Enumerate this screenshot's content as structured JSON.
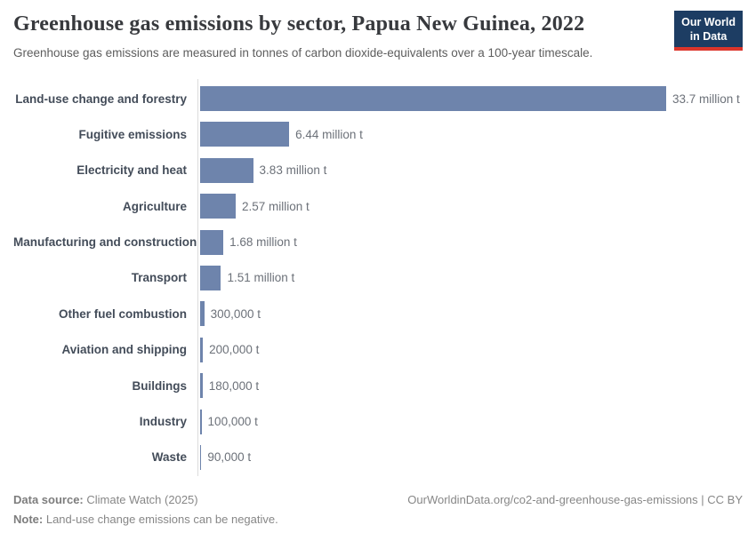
{
  "header": {
    "title": "Greenhouse gas emissions by sector, Papua New Guinea, 2022",
    "subtitle": "Greenhouse gas emissions are measured in tonnes of carbon dioxide-equivalents over a 100-year timescale.",
    "logo": {
      "line1": "Our World",
      "line2": "in Data"
    }
  },
  "chart_data": {
    "type": "bar",
    "orientation": "horizontal",
    "title": "Greenhouse gas emissions by sector, Papua New Guinea, 2022",
    "unit": "tonnes of carbon dioxide-equivalents",
    "categories": [
      "Land-use change and forestry",
      "Fugitive emissions",
      "Electricity and heat",
      "Agriculture",
      "Manufacturing and construction",
      "Transport",
      "Other fuel combustion",
      "Aviation and shipping",
      "Buildings",
      "Industry",
      "Waste"
    ],
    "values_million_t": [
      33.7,
      6.44,
      3.83,
      2.57,
      1.68,
      1.51,
      0.3,
      0.2,
      0.18,
      0.1,
      0.09
    ],
    "value_labels": [
      "33.7 million t",
      "6.44 million t",
      "3.83 million t",
      "2.57 million t",
      "1.68 million t",
      "1.51 million t",
      "300,000 t",
      "200,000 t",
      "180,000 t",
      "100,000 t",
      "90,000 t"
    ],
    "xlim": [
      0,
      33.7
    ],
    "grid": false,
    "legend": "none"
  },
  "footer": {
    "data_source_label": "Data source:",
    "data_source": "Climate Watch (2025)",
    "note_label": "Note:",
    "note": "Land-use change emissions can be negative.",
    "link": "OurWorldinData.org/co2-and-greenhouse-gas-emissions | CC BY"
  },
  "colors": {
    "bar": "#6e84ac",
    "logo_bg": "#1d3d63",
    "logo_accent": "#dc352b",
    "axis": "#dcdcdc"
  }
}
